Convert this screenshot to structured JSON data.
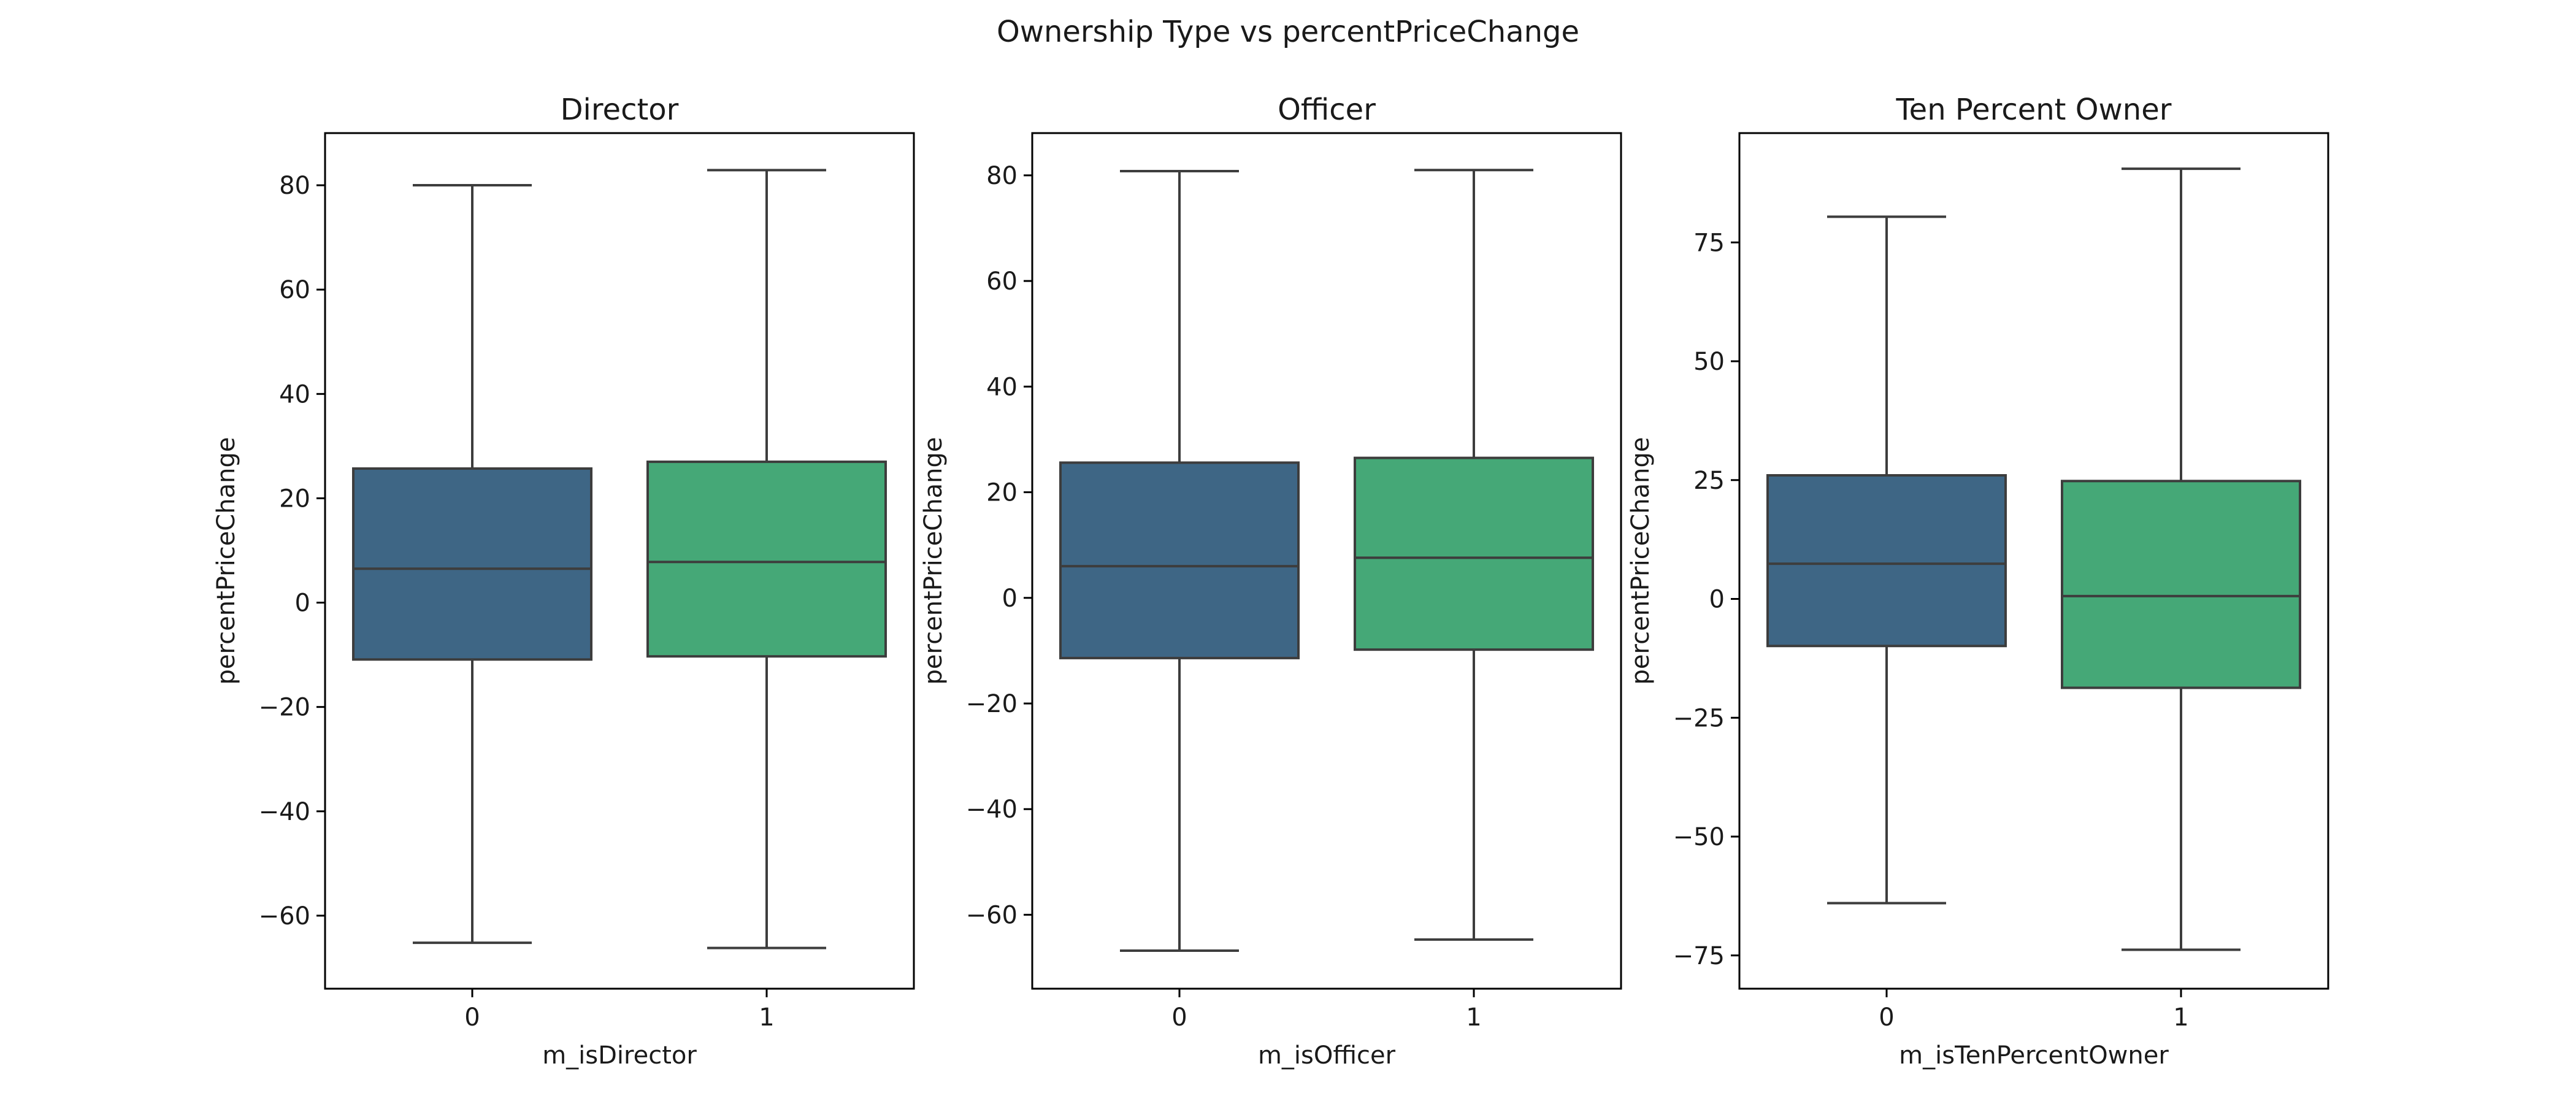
{
  "figure": {
    "title": "Ownership Type vs percentPriceChange"
  },
  "chart_data": [
    {
      "type": "box",
      "title": "Director",
      "xlabel": "m_isDirector",
      "ylabel": "percentPriceChange",
      "categories": [
        "0",
        "1"
      ],
      "ylim": [
        -74,
        90
      ],
      "yticks": [
        -60,
        -40,
        -20,
        0,
        20,
        40,
        60,
        80
      ],
      "ytick_labels": [
        "−60",
        "−40",
        "−20",
        "0",
        "20",
        "40",
        "60",
        "80"
      ],
      "boxes": [
        {
          "category": "0",
          "whisker_low": -65.2,
          "q1": -10.9,
          "median": 6.5,
          "q3": 25.7,
          "whisker_high": 80.0,
          "color": "#3e6685"
        },
        {
          "category": "1",
          "whisker_low": -66.2,
          "q1": -10.3,
          "median": 7.8,
          "q3": 27.0,
          "whisker_high": 82.9,
          "color": "#45a877"
        }
      ]
    },
    {
      "type": "box",
      "title": "Officer",
      "xlabel": "m_isOfficer",
      "ylabel": "percentPriceChange",
      "categories": [
        "0",
        "1"
      ],
      "ylim": [
        -74,
        88
      ],
      "yticks": [
        -60,
        -40,
        -20,
        0,
        20,
        40,
        60,
        80
      ],
      "ytick_labels": [
        "−60",
        "−40",
        "−20",
        "0",
        "20",
        "40",
        "60",
        "80"
      ],
      "boxes": [
        {
          "category": "0",
          "whisker_low": -66.8,
          "q1": -11.4,
          "median": 6.0,
          "q3": 25.6,
          "whisker_high": 80.8,
          "color": "#3e6685"
        },
        {
          "category": "1",
          "whisker_low": -64.7,
          "q1": -9.8,
          "median": 7.6,
          "q3": 26.5,
          "whisker_high": 81.0,
          "color": "#45a877"
        }
      ]
    },
    {
      "type": "box",
      "title": "Ten Percent Owner",
      "xlabel": "m_isTenPercentOwner",
      "ylabel": "percentPriceChange",
      "categories": [
        "0",
        "1"
      ],
      "ylim": [
        -82,
        98
      ],
      "yticks": [
        -75,
        -50,
        -25,
        0,
        25,
        50,
        75
      ],
      "ytick_labels": [
        "−75",
        "−50",
        "−25",
        "0",
        "25",
        "50",
        "75"
      ],
      "boxes": [
        {
          "category": "0",
          "whisker_low": -64.0,
          "q1": -9.9,
          "median": 7.4,
          "q3": 26.0,
          "whisker_high": 80.4,
          "color": "#3e6685"
        },
        {
          "category": "1",
          "whisker_low": -73.8,
          "q1": -18.7,
          "median": 0.6,
          "q3": 24.8,
          "whisker_high": 90.5,
          "color": "#45a877"
        }
      ]
    }
  ]
}
